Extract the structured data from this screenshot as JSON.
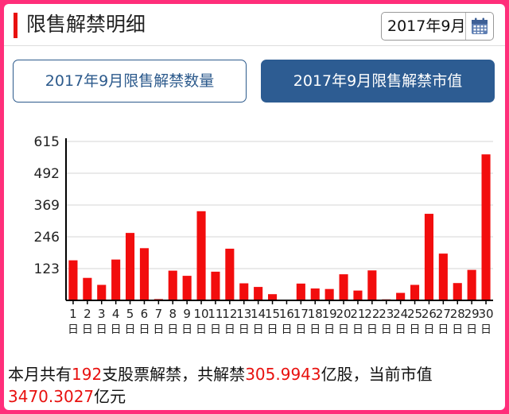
{
  "header": {
    "title": "限售解禁明细",
    "date_value": "2017年9月"
  },
  "icons": {
    "calendar": "calendar-icon"
  },
  "tabs": [
    {
      "label": "2017年9月限售解禁数量",
      "active": false
    },
    {
      "label": "2017年9月限售解禁市值",
      "active": true
    }
  ],
  "colors": {
    "accent": "#e8110f",
    "tab_blue": "#2d5c92",
    "bar": "#f20d0d",
    "frame": "#ff2e7a"
  },
  "chart_data": {
    "type": "bar",
    "categories": [
      "1",
      "2",
      "3",
      "4",
      "5",
      "6",
      "7",
      "8",
      "9",
      "10",
      "11",
      "12",
      "13",
      "14",
      "15",
      "16",
      "17",
      "18",
      "19",
      "20",
      "21",
      "22",
      "23",
      "24",
      "25",
      "26",
      "27",
      "28",
      "29",
      "30"
    ],
    "category_suffix": "日",
    "values": [
      155,
      87,
      60,
      158,
      261,
      202,
      5,
      115,
      95,
      345,
      111,
      200,
      66,
      52,
      24,
      2,
      65,
      46,
      44,
      101,
      38,
      116,
      4,
      29,
      60,
      335,
      181,
      67,
      118,
      565
    ],
    "yticks": [
      123,
      246,
      369,
      492,
      615
    ],
    "ylim": [
      0,
      615
    ],
    "grid": true
  },
  "summary": {
    "p1": "本月共有",
    "count": "192",
    "p2": "支股票解禁，共解禁",
    "shares": "305.9943",
    "p3": "亿股，当前市值",
    "value": "3470.3027",
    "p4": "亿元"
  }
}
